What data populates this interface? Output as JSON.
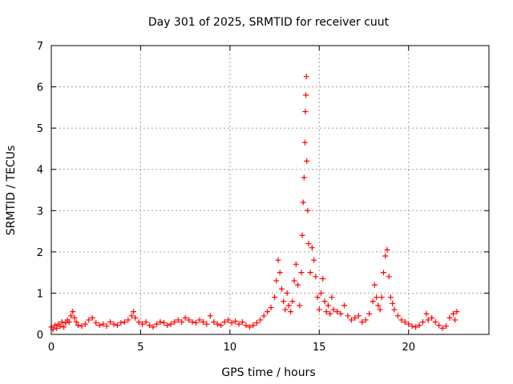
{
  "chart_data": {
    "type": "scatter",
    "title": "Day 301 of 2025, SRMTID for receiver cuut",
    "xlabel": "GPS time / hours",
    "ylabel": "SRMTID / TECUs",
    "xlim": [
      0,
      24.5
    ],
    "ylim": [
      0,
      7
    ],
    "xticks": [
      0,
      5,
      10,
      15,
      20
    ],
    "yticks": [
      0,
      1,
      2,
      3,
      4,
      5,
      6,
      7
    ],
    "grid": true,
    "marker": "+",
    "marker_color": "#ff0000",
    "series": [
      {
        "name": "SRMTID",
        "points": [
          [
            0.0,
            0.18
          ],
          [
            0.1,
            0.12
          ],
          [
            0.2,
            0.22
          ],
          [
            0.3,
            0.15
          ],
          [
            0.4,
            0.25
          ],
          [
            0.5,
            0.2
          ],
          [
            0.6,
            0.3
          ],
          [
            0.7,
            0.18
          ],
          [
            0.8,
            0.28
          ],
          [
            0.9,
            0.35
          ],
          [
            1.0,
            0.3
          ],
          [
            1.1,
            0.45
          ],
          [
            1.2,
            0.55
          ],
          [
            1.3,
            0.4
          ],
          [
            1.4,
            0.3
          ],
          [
            1.5,
            0.22
          ],
          [
            1.7,
            0.2
          ],
          [
            1.9,
            0.25
          ],
          [
            2.1,
            0.35
          ],
          [
            2.3,
            0.4
          ],
          [
            2.5,
            0.28
          ],
          [
            2.7,
            0.22
          ],
          [
            2.9,
            0.25
          ],
          [
            3.1,
            0.2
          ],
          [
            3.3,
            0.3
          ],
          [
            3.5,
            0.25
          ],
          [
            3.7,
            0.22
          ],
          [
            3.9,
            0.28
          ],
          [
            4.1,
            0.3
          ],
          [
            4.3,
            0.35
          ],
          [
            4.5,
            0.45
          ],
          [
            4.6,
            0.55
          ],
          [
            4.7,
            0.4
          ],
          [
            4.9,
            0.3
          ],
          [
            5.1,
            0.25
          ],
          [
            5.3,
            0.3
          ],
          [
            5.5,
            0.22
          ],
          [
            5.7,
            0.18
          ],
          [
            5.9,
            0.25
          ],
          [
            6.1,
            0.3
          ],
          [
            6.3,
            0.28
          ],
          [
            6.5,
            0.22
          ],
          [
            6.7,
            0.25
          ],
          [
            6.9,
            0.3
          ],
          [
            7.1,
            0.35
          ],
          [
            7.3,
            0.3
          ],
          [
            7.5,
            0.4
          ],
          [
            7.7,
            0.35
          ],
          [
            7.9,
            0.3
          ],
          [
            8.1,
            0.28
          ],
          [
            8.3,
            0.35
          ],
          [
            8.5,
            0.3
          ],
          [
            8.7,
            0.25
          ],
          [
            8.9,
            0.45
          ],
          [
            9.1,
            0.3
          ],
          [
            9.3,
            0.25
          ],
          [
            9.5,
            0.22
          ],
          [
            9.7,
            0.3
          ],
          [
            9.9,
            0.35
          ],
          [
            10.1,
            0.28
          ],
          [
            10.3,
            0.32
          ],
          [
            10.5,
            0.25
          ],
          [
            10.7,
            0.3
          ],
          [
            10.9,
            0.22
          ],
          [
            11.1,
            0.18
          ],
          [
            11.3,
            0.22
          ],
          [
            11.5,
            0.28
          ],
          [
            11.7,
            0.35
          ],
          [
            11.9,
            0.45
          ],
          [
            12.1,
            0.55
          ],
          [
            12.3,
            0.65
          ],
          [
            12.5,
            0.9
          ],
          [
            12.6,
            1.3
          ],
          [
            12.7,
            1.8
          ],
          [
            12.8,
            1.5
          ],
          [
            12.9,
            1.1
          ],
          [
            13.0,
            0.8
          ],
          [
            13.1,
            0.6
          ],
          [
            13.2,
            1.0
          ],
          [
            13.3,
            0.7
          ],
          [
            13.4,
            0.55
          ],
          [
            13.5,
            0.8
          ],
          [
            13.6,
            1.3
          ],
          [
            13.7,
            1.7
          ],
          [
            13.8,
            1.2
          ],
          [
            13.9,
            0.7
          ],
          [
            14.0,
            1.5
          ],
          [
            14.05,
            2.4
          ],
          [
            14.1,
            3.2
          ],
          [
            14.15,
            3.8
          ],
          [
            14.2,
            4.65
          ],
          [
            14.22,
            5.4
          ],
          [
            14.25,
            5.8
          ],
          [
            14.28,
            6.25
          ],
          [
            14.3,
            4.2
          ],
          [
            14.35,
            3.0
          ],
          [
            14.4,
            2.2
          ],
          [
            14.5,
            1.5
          ],
          [
            14.6,
            2.1
          ],
          [
            14.7,
            1.8
          ],
          [
            14.8,
            1.4
          ],
          [
            14.9,
            0.9
          ],
          [
            15.0,
            0.6
          ],
          [
            15.1,
            1.0
          ],
          [
            15.2,
            1.35
          ],
          [
            15.3,
            0.8
          ],
          [
            15.4,
            0.55
          ],
          [
            15.5,
            0.7
          ],
          [
            15.6,
            0.5
          ],
          [
            15.7,
            0.9
          ],
          [
            15.8,
            0.6
          ],
          [
            16.0,
            0.55
          ],
          [
            16.2,
            0.5
          ],
          [
            16.4,
            0.7
          ],
          [
            16.6,
            0.45
          ],
          [
            16.8,
            0.35
          ],
          [
            17.0,
            0.4
          ],
          [
            17.2,
            0.45
          ],
          [
            17.4,
            0.3
          ],
          [
            17.6,
            0.35
          ],
          [
            17.8,
            0.5
          ],
          [
            18.0,
            0.8
          ],
          [
            18.1,
            1.2
          ],
          [
            18.2,
            0.9
          ],
          [
            18.3,
            0.7
          ],
          [
            18.4,
            0.6
          ],
          [
            18.5,
            0.9
          ],
          [
            18.6,
            1.5
          ],
          [
            18.7,
            1.9
          ],
          [
            18.8,
            2.05
          ],
          [
            18.9,
            1.4
          ],
          [
            19.0,
            0.9
          ],
          [
            19.1,
            0.75
          ],
          [
            19.2,
            0.6
          ],
          [
            19.4,
            0.45
          ],
          [
            19.6,
            0.35
          ],
          [
            19.8,
            0.3
          ],
          [
            20.0,
            0.25
          ],
          [
            20.2,
            0.2
          ],
          [
            20.4,
            0.18
          ],
          [
            20.6,
            0.22
          ],
          [
            20.8,
            0.3
          ],
          [
            21.0,
            0.5
          ],
          [
            21.1,
            0.35
          ],
          [
            21.3,
            0.4
          ],
          [
            21.5,
            0.3
          ],
          [
            21.7,
            0.22
          ],
          [
            21.9,
            0.15
          ],
          [
            22.1,
            0.2
          ],
          [
            22.3,
            0.4
          ],
          [
            22.5,
            0.5
          ],
          [
            22.6,
            0.35
          ],
          [
            22.7,
            0.55
          ]
        ]
      }
    ]
  }
}
